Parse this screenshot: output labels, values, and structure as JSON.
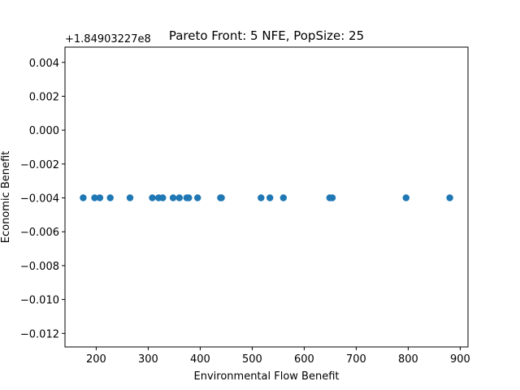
{
  "chart_data": {
    "type": "scatter",
    "title": "Pareto Front: 5 NFE, PopSize: 25",
    "xlabel": "Environmental Flow Benefit",
    "ylabel": "Economic Benefit",
    "y_offset_label": "+1.84903227e8",
    "xlim": [
      140,
      915
    ],
    "ylim": [
      -0.0128,
      0.0049
    ],
    "xticks": [
      200,
      300,
      400,
      500,
      600,
      700,
      800,
      900
    ],
    "yticks": [
      0.004,
      0.002,
      0.0,
      -0.002,
      -0.004,
      -0.006,
      -0.008,
      -0.01,
      -0.012
    ],
    "ytick_labels": [
      "0.004",
      "0.002",
      "0.000",
      "−0.002",
      "−0.004",
      "−0.006",
      "−0.008",
      "−0.010",
      "−0.012"
    ],
    "marker_color": "#1f77b4",
    "x": [
      175,
      197,
      207,
      227,
      265,
      308,
      320,
      328,
      348,
      360,
      374,
      378,
      395,
      439,
      441,
      517,
      534,
      560,
      649,
      654,
      796,
      880
    ],
    "y": [
      -0.004,
      -0.004,
      -0.004,
      -0.004,
      -0.004,
      -0.004,
      -0.004,
      -0.004,
      -0.004,
      -0.004,
      -0.004,
      -0.004,
      -0.004,
      -0.004,
      -0.004,
      -0.004,
      -0.004,
      -0.004,
      -0.004,
      -0.004,
      -0.004,
      -0.004
    ]
  }
}
